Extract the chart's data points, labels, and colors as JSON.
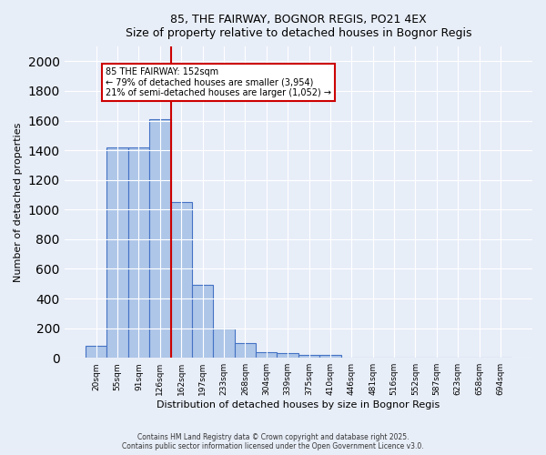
{
  "title1": "85, THE FAIRWAY, BOGNOR REGIS, PO21 4EX",
  "title2": "Size of property relative to detached houses in Bognor Regis",
  "xlabel": "Distribution of detached houses by size in Bognor Regis",
  "ylabel": "Number of detached properties",
  "bar_color": "#aec6e8",
  "bar_edge_color": "#4472c4",
  "categories": [
    "20sqm",
    "55sqm",
    "91sqm",
    "126sqm",
    "162sqm",
    "197sqm",
    "233sqm",
    "268sqm",
    "304sqm",
    "339sqm",
    "375sqm",
    "410sqm",
    "446sqm",
    "481sqm",
    "516sqm",
    "552sqm",
    "587sqm",
    "623sqm",
    "658sqm",
    "694sqm"
  ],
  "values": [
    80,
    1420,
    1420,
    1610,
    1050,
    490,
    200,
    100,
    40,
    30,
    20,
    20,
    0,
    0,
    0,
    0,
    0,
    0,
    0,
    0
  ],
  "ylim": [
    0,
    2100
  ],
  "yticks": [
    0,
    200,
    400,
    600,
    800,
    1000,
    1200,
    1400,
    1600,
    1800,
    2000
  ],
  "vline_pos": 3.5,
  "vline_color": "#cc0000",
  "annotation_text": "85 THE FAIRWAY: 152sqm\n← 79% of detached houses are smaller (3,954)\n21% of semi-detached houses are larger (1,052) →",
  "annotation_box_color": "#cc0000",
  "annotation_box_fill": "white",
  "bg_color": "#e8eef8",
  "grid_color": "#ffffff",
  "footer1": "Contains HM Land Registry data © Crown copyright and database right 2025.",
  "footer2": "Contains public sector information licensed under the Open Government Licence v3.0."
}
